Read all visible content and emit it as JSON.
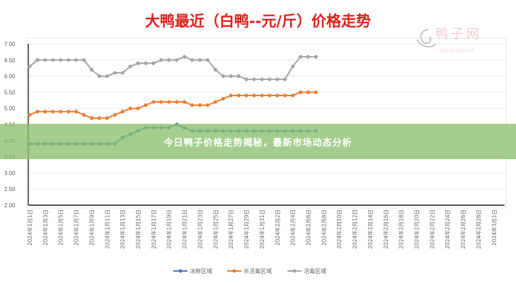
{
  "chart_data": {
    "type": "line",
    "title": "大鸭最近（白鸭--元/斤）价格走势",
    "xlabel": "",
    "ylabel": "",
    "ylim": [
      2.0,
      7.0
    ],
    "yticks": [
      "2.00",
      "2.50",
      "3.00",
      "3.50",
      "4.00",
      "4.50",
      "5.00",
      "5.50",
      "6.00",
      "6.50",
      "7.00"
    ],
    "grid": true,
    "legend_position": "bottom",
    "x_tick_labels": [
      "2024年1月1日",
      "2024年1月3日",
      "2024年1月5日",
      "2024年1月7日",
      "2024年1月9日",
      "2024年1月11日",
      "2024年1月13日",
      "2024年1月15日",
      "2024年1月17日",
      "2024年1月19日",
      "2024年1月21日",
      "2024年1月23日",
      "2024年1月25日",
      "2024年1月27日",
      "2024年1月29日",
      "2024年1月31日",
      "2024年2月2日",
      "2024年2月4日",
      "2024年2月6日",
      "2024年2月8日",
      "2024年2月10日",
      "2024年2月12日",
      "2024年2月14日",
      "2024年2月16日",
      "2024年2月18日",
      "2024年2月20日",
      "2024年2月22日",
      "2024年2月24日",
      "2024年2月26日",
      "2024年2月28日",
      "2024年3月1日"
    ],
    "x_start": "2024-01-01",
    "x_days": 61,
    "series": [
      {
        "name": "冰鲜区域",
        "color": "#4472c4",
        "values": [
          3.9,
          3.9,
          3.9,
          3.9,
          3.9,
          3.9,
          3.9,
          3.9,
          3.9,
          3.9,
          3.9,
          3.9,
          4.1,
          4.2,
          4.3,
          4.4,
          4.4,
          4.4,
          4.4,
          4.5,
          4.4,
          4.3,
          4.3,
          4.3,
          4.3,
          4.3,
          4.3,
          4.3,
          4.3,
          4.3,
          4.3,
          4.3,
          4.3,
          4.3,
          4.3,
          4.3,
          4.3,
          4.3
        ]
      },
      {
        "name": "半活禽区域",
        "color": "#ed7d31",
        "values": [
          4.8,
          4.9,
          4.9,
          4.9,
          4.9,
          4.9,
          4.9,
          4.8,
          4.7,
          4.7,
          4.7,
          4.8,
          4.9,
          5.0,
          5.0,
          5.1,
          5.2,
          5.2,
          5.2,
          5.2,
          5.2,
          5.1,
          5.1,
          5.1,
          5.2,
          5.3,
          5.4,
          5.4,
          5.4,
          5.4,
          5.4,
          5.4,
          5.4,
          5.4,
          5.4,
          5.5,
          5.5,
          5.5
        ]
      },
      {
        "name": "活禽区域",
        "color": "#a5a5a5",
        "values": [
          6.3,
          6.5,
          6.5,
          6.5,
          6.5,
          6.5,
          6.5,
          6.5,
          6.2,
          6.0,
          6.0,
          6.1,
          6.1,
          6.3,
          6.4,
          6.4,
          6.4,
          6.5,
          6.5,
          6.5,
          6.6,
          6.5,
          6.5,
          6.5,
          6.2,
          6.0,
          6.0,
          6.0,
          5.9,
          5.9,
          5.9,
          5.9,
          5.9,
          5.9,
          6.3,
          6.6,
          6.6,
          6.6
        ]
      }
    ]
  },
  "banner_text": "今日鸭子价格走势揭秘，最新市场动态分析",
  "watermark": {
    "name": "鸭子网",
    "phone": "15131069795"
  }
}
